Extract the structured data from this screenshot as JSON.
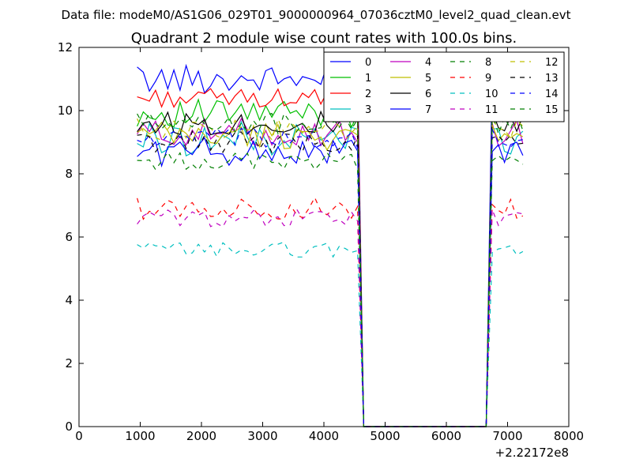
{
  "chart_data": {
    "type": "line",
    "suptitle": "Data file: modeM0/AS1G06_029T01_9000000964_07036cztM0_level2_quad_clean.evt",
    "title": "Quadrant 2 module wise count rates with 100.0s bins.",
    "xlabel": "",
    "ylabel": "",
    "xlim": [
      0,
      8000
    ],
    "ylim": [
      0,
      12
    ],
    "x_offset_label": "+2.22172e8",
    "x_ticks": [
      0,
      1000,
      2000,
      3000,
      4000,
      5000,
      6000,
      7000,
      8000
    ],
    "x_tick_labels": [
      "0",
      "1000",
      "2000",
      "3000",
      "4000",
      "5000",
      "6000",
      "7000",
      "8000"
    ],
    "y_ticks": [
      0,
      2,
      4,
      6,
      8,
      10,
      12
    ],
    "y_tick_labels": [
      "0",
      "2",
      "4",
      "6",
      "8",
      "10",
      "12"
    ],
    "x": [
      950,
      1050,
      1150,
      1250,
      1350,
      1450,
      1550,
      1650,
      1750,
      1850,
      1950,
      2050,
      2150,
      2250,
      2350,
      2450,
      2550,
      2650,
      2750,
      2850,
      2950,
      3050,
      3150,
      3250,
      3350,
      3450,
      3550,
      3650,
      3750,
      3850,
      3950,
      4050,
      4150,
      4250,
      4350,
      4450,
      4550,
      4650,
      4750,
      4850,
      4950,
      5050,
      5150,
      5250,
      5350,
      5450,
      5550,
      5650,
      5750,
      5850,
      5950,
      6050,
      6150,
      6250,
      6350,
      6450,
      6550,
      6650,
      6750,
      6850,
      6950,
      7050,
      7150,
      7250
    ],
    "legend_loc": "upper right",
    "legend_columns": 4,
    "series": [
      {
        "name": "0",
        "color": "#0000ff",
        "dash": "solid",
        "level": 11.0,
        "amp": 0.45,
        "peak": 11.4,
        "lowlevel": 0.0
      },
      {
        "name": "1",
        "color": "#00bf00",
        "dash": "solid",
        "level": 9.9,
        "amp": 0.45
      },
      {
        "name": "2",
        "color": "#ff0000",
        "dash": "solid",
        "level": 10.4,
        "amp": 0.3
      },
      {
        "name": "3",
        "color": "#00bfbf",
        "dash": "solid",
        "level": 9.1,
        "amp": 0.55
      },
      {
        "name": "4",
        "color": "#bf00bf",
        "dash": "solid",
        "level": 9.3,
        "amp": 0.45
      },
      {
        "name": "5",
        "color": "#bfbf00",
        "dash": "solid",
        "level": 9.2,
        "amp": 0.45
      },
      {
        "name": "6",
        "color": "#000000",
        "dash": "solid",
        "level": 9.6,
        "amp": 0.4
      },
      {
        "name": "7",
        "color": "#0000ff",
        "dash": "solid",
        "level": 8.7,
        "amp": 0.45
      },
      {
        "name": "8",
        "color": "#007f00",
        "dash": "dashed",
        "level": 8.4,
        "amp": 0.3
      },
      {
        "name": "9",
        "color": "#ff0000",
        "dash": "dashed",
        "level": 6.9,
        "amp": 0.35
      },
      {
        "name": "10",
        "color": "#00bfbf",
        "dash": "dashed",
        "level": 5.6,
        "amp": 0.25
      },
      {
        "name": "11",
        "color": "#bf00bf",
        "dash": "dashed",
        "level": 6.6,
        "amp": 0.3
      },
      {
        "name": "12",
        "color": "#bfbf00",
        "dash": "dashed",
        "level": 9.4,
        "amp": 0.35
      },
      {
        "name": "13",
        "color": "#000000",
        "dash": "dashed",
        "level": 9.0,
        "amp": 0.35
      },
      {
        "name": "14",
        "color": "#0000ff",
        "dash": "dashed",
        "level": 9.1,
        "amp": 0.35
      },
      {
        "name": "15",
        "color": "#007f00",
        "dash": "dashed",
        "level": 9.6,
        "amp": 0.35
      }
    ],
    "gap": {
      "start_x": 4650,
      "end_x": 6650,
      "value": 0
    }
  }
}
